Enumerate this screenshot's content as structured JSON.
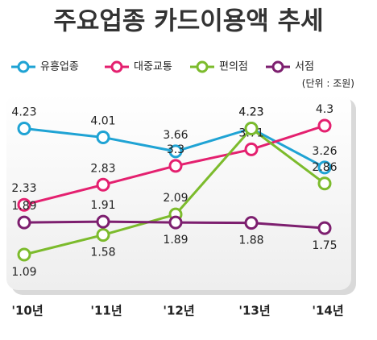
{
  "chart_data": {
    "type": "line",
    "title": "주요업종 카드이용액 추세",
    "unit": "(단위 : 조원)",
    "categories": [
      "'10년",
      "'11년",
      "'12년",
      "'13년",
      "'14년"
    ],
    "series": [
      {
        "name": "유흥업종",
        "color": "#1fa3d4",
        "values": [
          4.23,
          4.01,
          3.66,
          4.23,
          3.26
        ]
      },
      {
        "name": "대중교통",
        "color": "#e4206f",
        "values": [
          2.33,
          2.83,
          3.3,
          3.71,
          4.3
        ]
      },
      {
        "name": "편의점",
        "color": "#7cbb2c",
        "values": [
          1.09,
          1.58,
          2.09,
          4.23,
          2.86
        ]
      },
      {
        "name": "서점",
        "color": "#7d1f6f",
        "values": [
          1.89,
          1.91,
          1.89,
          1.88,
          1.75
        ]
      }
    ]
  }
}
